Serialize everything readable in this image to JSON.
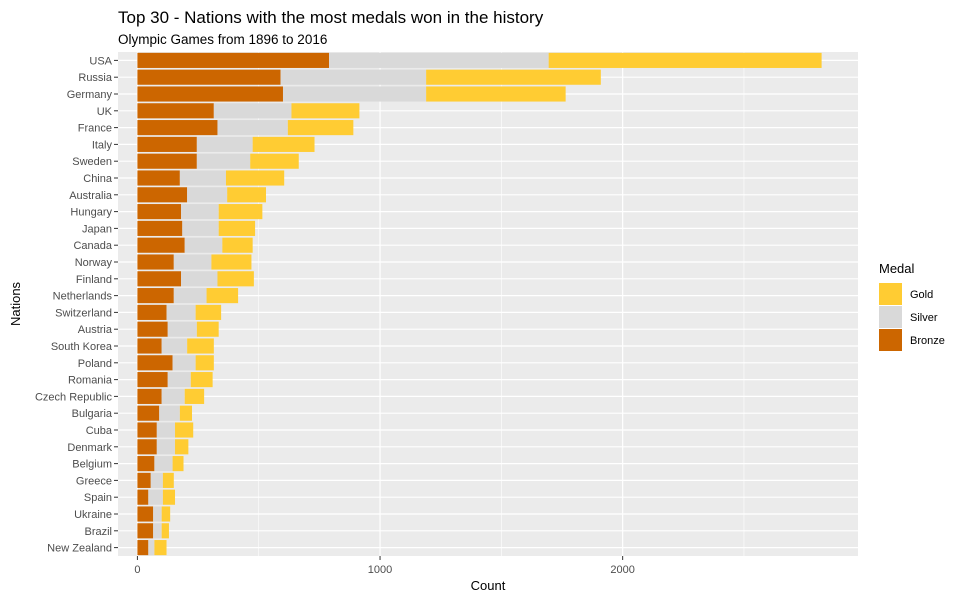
{
  "chart_data": {
    "type": "bar",
    "orientation": "horizontal",
    "stacked": true,
    "title": "Top 30 - Nations with the most medals won in the history",
    "subtitle": "Olympic Games from 1896 to 2016",
    "xlabel": "Count",
    "ylabel": "Nations",
    "xlim": [
      -80,
      2970
    ],
    "xticks": [
      0,
      1000,
      2000
    ],
    "grid": true,
    "legend": {
      "title": "Medal",
      "position": "right"
    },
    "categories": [
      "USA",
      "Russia",
      "Germany",
      "UK",
      "France",
      "Italy",
      "Sweden",
      "China",
      "Australia",
      "Hungary",
      "Japan",
      "Canada",
      "Norway",
      "Finland",
      "Netherlands",
      "Switzerland",
      "Austria",
      "South Korea",
      "Poland",
      "Romania",
      "Czech Republic",
      "Bulgaria",
      "Cuba",
      "Denmark",
      "Belgium",
      "Greece",
      "Spain",
      "Ukraine",
      "Brazil",
      "New Zealand"
    ],
    "series": [
      {
        "name": "Bronze",
        "color": "#CC6600",
        "values": [
          790,
          590,
          600,
          315,
          330,
          245,
          245,
          175,
          205,
          180,
          185,
          195,
          150,
          180,
          150,
          120,
          125,
          100,
          145,
          125,
          100,
          90,
          80,
          80,
          70,
          55,
          45,
          65,
          65,
          45
        ]
      },
      {
        "name": "Silver",
        "color": "#D9D9D9",
        "values": [
          905,
          600,
          590,
          320,
          290,
          230,
          220,
          190,
          165,
          155,
          150,
          155,
          155,
          150,
          135,
          120,
          120,
          105,
          95,
          95,
          95,
          85,
          75,
          75,
          75,
          50,
          60,
          35,
          35,
          25
        ]
      },
      {
        "name": "Gold",
        "color": "#FFCC33",
        "values": [
          1125,
          720,
          575,
          280,
          270,
          255,
          200,
          240,
          160,
          180,
          150,
          125,
          165,
          150,
          130,
          105,
          90,
          110,
          75,
          90,
          80,
          50,
          75,
          55,
          45,
          45,
          50,
          35,
          30,
          50
        ]
      }
    ],
    "legend_order": [
      "Gold",
      "Silver",
      "Bronze"
    ]
  }
}
